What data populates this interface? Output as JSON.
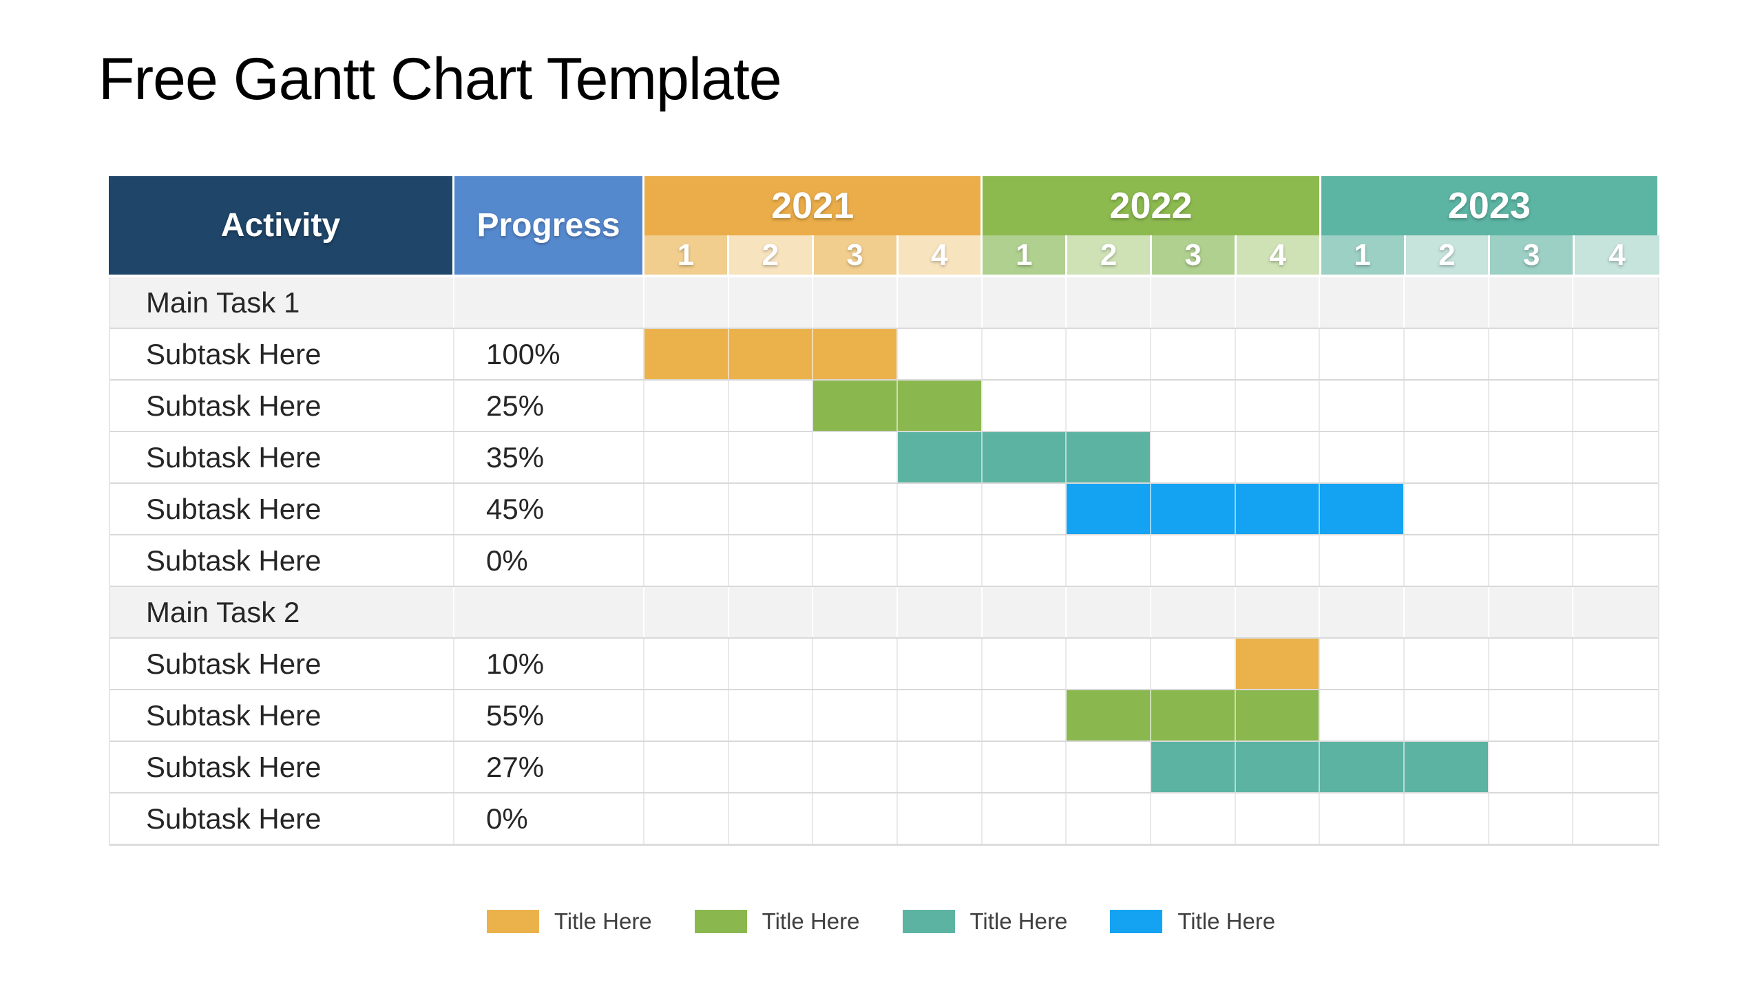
{
  "title": "Free Gantt Chart Template",
  "table": {
    "activity_header": "Activity",
    "progress_header": "Progress",
    "header_colors": {
      "activity_bg": "#1F4568",
      "progress_bg": "#5589CE"
    },
    "quarter_labels": [
      "1",
      "2",
      "3",
      "4"
    ],
    "years": [
      {
        "label": "2021",
        "color": "#EBAD49",
        "quarter_odd": "#F2CE8E",
        "quarter_even": "#F7E3BD"
      },
      {
        "label": "2022",
        "color": "#8CBA4F",
        "quarter_odd": "#B0D08F",
        "quarter_even": "#CFE2B6"
      },
      {
        "label": "2023",
        "color": "#5CB4A3",
        "quarter_odd": "#9DD0C5",
        "quarter_even": "#C6E3DC"
      }
    ]
  },
  "chart_data": {
    "type": "gantt",
    "title": "Free Gantt Chart Template",
    "timeline": {
      "years": [
        "2021",
        "2022",
        "2023"
      ],
      "quarters_per_year": 4
    },
    "bar_colors": {
      "orange": "#EBB24C",
      "green": "#8BB84E",
      "teal": "#5CB3A2",
      "blue": "#13A3F2"
    },
    "rows": [
      {
        "kind": "group",
        "activity": "Main Task 1",
        "progress": ""
      },
      {
        "kind": "task",
        "activity": "Subtask Here",
        "progress": "100%",
        "bar": {
          "start_quarter_index": 0,
          "num_quarters": 3,
          "color": "orange"
        }
      },
      {
        "kind": "task",
        "activity": "Subtask Here",
        "progress": "25%",
        "bar": {
          "start_quarter_index": 2,
          "num_quarters": 2,
          "color": "green"
        }
      },
      {
        "kind": "task",
        "activity": "Subtask Here",
        "progress": "35%",
        "bar": {
          "start_quarter_index": 3,
          "num_quarters": 3,
          "color": "teal"
        }
      },
      {
        "kind": "task",
        "activity": "Subtask Here",
        "progress": "45%",
        "bar": {
          "start_quarter_index": 5,
          "num_quarters": 4,
          "color": "blue"
        }
      },
      {
        "kind": "task",
        "activity": "Subtask Here",
        "progress": "0%",
        "bar": null
      },
      {
        "kind": "group",
        "activity": "Main Task 2",
        "progress": ""
      },
      {
        "kind": "task",
        "activity": "Subtask Here",
        "progress": "10%",
        "bar": {
          "start_quarter_index": 7,
          "num_quarters": 1,
          "color": "orange"
        }
      },
      {
        "kind": "task",
        "activity": "Subtask Here",
        "progress": "55%",
        "bar": {
          "start_quarter_index": 5,
          "num_quarters": 3,
          "color": "green"
        }
      },
      {
        "kind": "task",
        "activity": "Subtask Here",
        "progress": "27%",
        "bar": {
          "start_quarter_index": 6,
          "num_quarters": 4,
          "color": "teal"
        }
      },
      {
        "kind": "task",
        "activity": "Subtask Here",
        "progress": "0%",
        "bar": null
      }
    ],
    "legend": [
      {
        "label": "Title Here",
        "color": "#EBB24C"
      },
      {
        "label": "Title Here",
        "color": "#8BB84E"
      },
      {
        "label": "Title Here",
        "color": "#5CB3A2"
      },
      {
        "label": "Title Here",
        "color": "#13A3F2"
      }
    ],
    "layout": {
      "legend_position": "bottom-center",
      "grid": true
    }
  }
}
